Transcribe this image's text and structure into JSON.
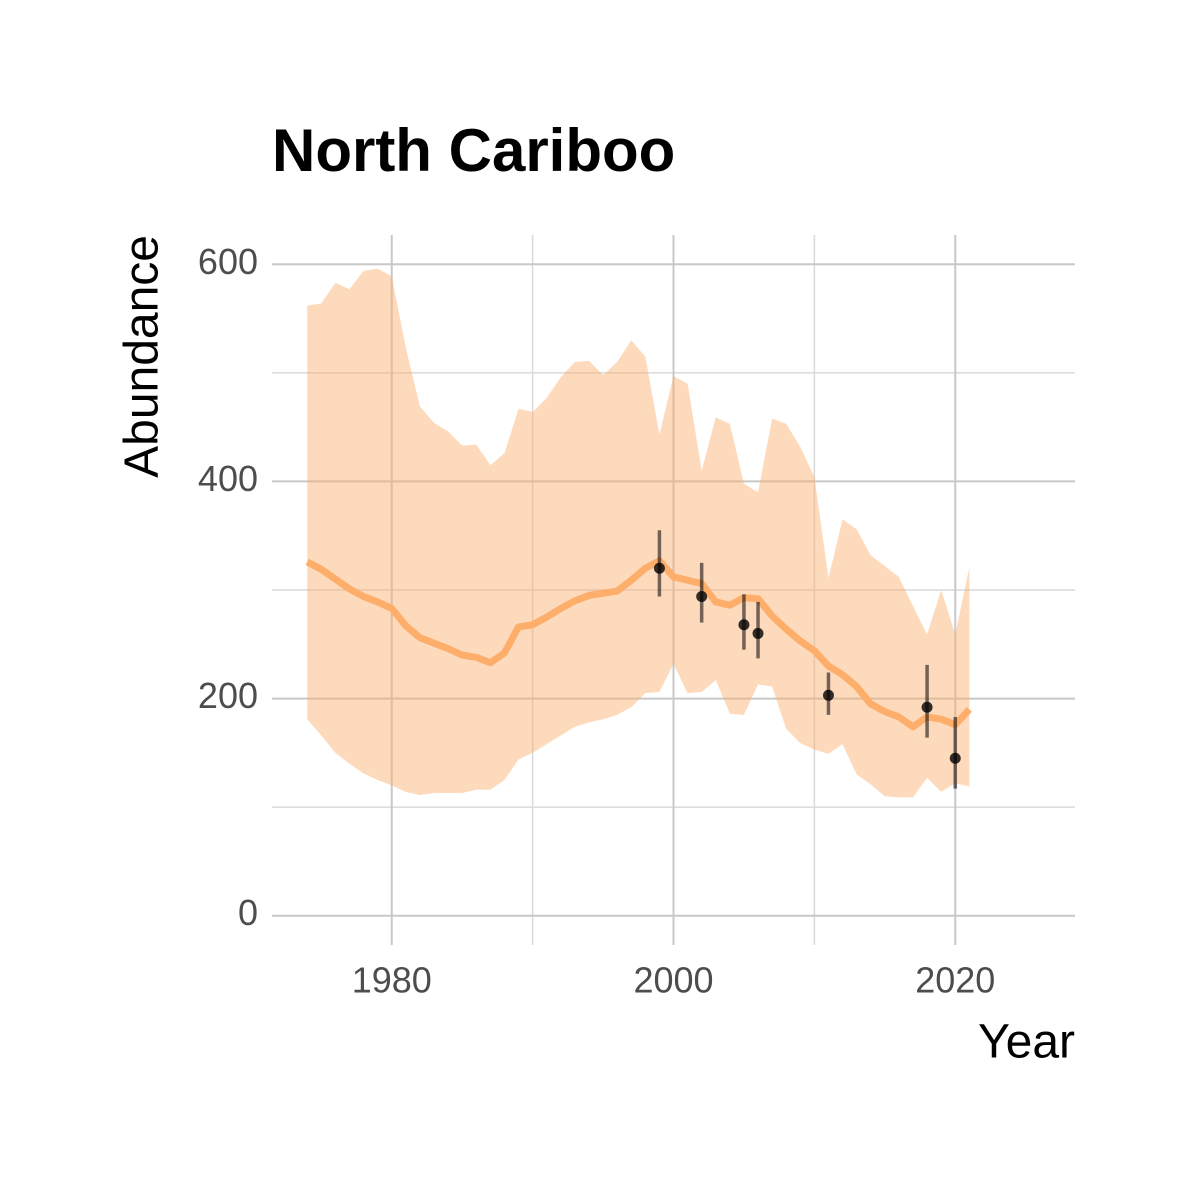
{
  "chart_data": {
    "type": "line",
    "title": "North Cariboo",
    "x_label": "Year",
    "y_label": "Abundance",
    "xlim": [
      1971.5,
      2028.5
    ],
    "ylim": [
      -27,
      627
    ],
    "xticks": [
      1980,
      2000,
      2020
    ],
    "yticks": [
      0,
      200,
      400,
      600
    ],
    "xminor": [
      1990,
      2010
    ],
    "yminor": [
      100,
      300,
      500
    ],
    "grid": true,
    "x": [
      1974,
      1975,
      1976,
      1977,
      1978,
      1979,
      1980,
      1981,
      1982,
      1983,
      1984,
      1985,
      1986,
      1987,
      1988,
      1989,
      1990,
      1991,
      1992,
      1993,
      1994,
      1995,
      1996,
      1997,
      1998,
      1999,
      2000,
      2001,
      2002,
      2003,
      2004,
      2005,
      2006,
      2007,
      2008,
      2009,
      2010,
      2011,
      2012,
      2013,
      2014,
      2015,
      2016,
      2017,
      2018,
      2019,
      2020,
      2021
    ],
    "series": [
      {
        "color": "#fdae6b",
        "values": [
          326,
          319,
          310,
          301,
          294,
          289,
          283,
          267,
          256,
          251,
          246,
          240,
          238,
          233,
          242,
          266,
          268,
          275,
          283,
          290,
          295,
          297,
          299,
          309,
          320,
          327,
          312,
          309,
          306,
          289,
          286,
          293,
          292,
          276,
          264,
          253,
          244,
          230,
          222,
          211,
          195,
          188,
          183,
          174,
          183,
          181,
          176,
          190
        ],
        "upper": [
          562,
          564,
          583,
          577,
          594,
          596,
          589,
          523,
          469,
          454,
          446,
          433,
          434,
          415,
          426,
          467,
          464,
          477,
          496,
          510,
          511,
          498,
          510,
          530,
          515,
          443,
          497,
          490,
          410,
          459,
          453,
          398,
          390,
          458,
          453,
          432,
          404,
          311,
          365,
          356,
          332,
          322,
          312,
          285,
          259,
          300,
          259,
          321
        ],
        "lower": [
          181,
          166,
          150,
          140,
          131,
          125,
          120,
          114,
          111,
          113,
          113,
          113,
          116,
          116,
          125,
          144,
          150,
          158,
          166,
          174,
          178,
          181,
          185,
          192,
          205,
          206,
          232,
          205,
          206,
          217,
          186,
          185,
          213,
          211,
          172,
          159,
          153,
          149,
          158,
          130,
          121,
          110,
          109,
          109,
          127,
          114,
          122,
          119
        ]
      }
    ],
    "points": {
      "color": "#000000",
      "x": [
        1999,
        2002,
        2005,
        2006,
        2011,
        2018,
        2020
      ],
      "values": [
        320,
        294,
        268,
        260,
        203,
        192,
        145
      ],
      "lower": [
        294,
        270,
        245,
        237,
        185,
        164,
        117
      ],
      "upper": [
        355,
        325,
        296,
        289,
        224,
        231,
        183
      ]
    }
  }
}
